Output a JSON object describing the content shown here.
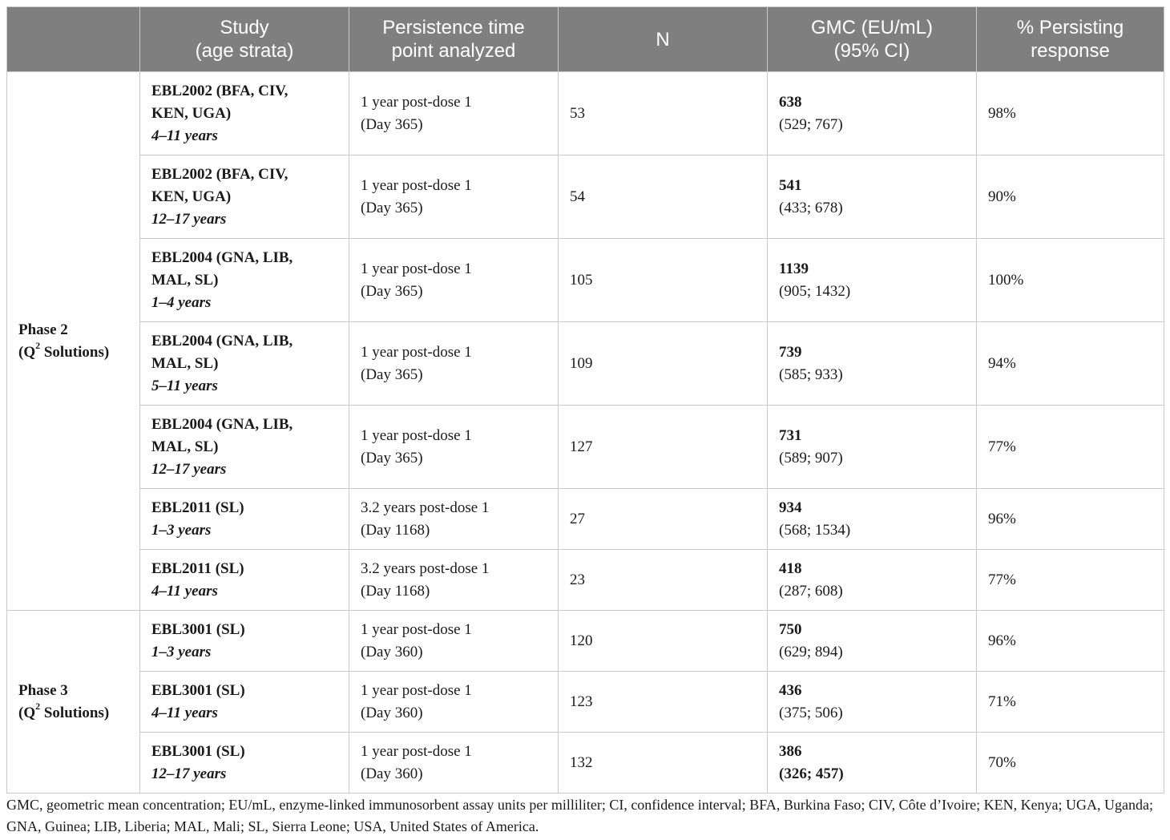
{
  "header": {
    "col0": "",
    "study": [
      "Study",
      "(age strata)"
    ],
    "timepoint": [
      "Persistence time",
      "point analyzed"
    ],
    "n": "N",
    "gmc": [
      "GMC (EU/mL)",
      "(95% CI)"
    ],
    "persisting": [
      "% Persisting",
      "response"
    ]
  },
  "phases": [
    {
      "line1": "Phase 2",
      "line2_prefix": "(Q",
      "sup": "2",
      "line2_suffix": " Solutions)"
    },
    {
      "line1": "Phase 3",
      "line2_prefix": "(Q",
      "sup": "2",
      "line2_suffix": " Solutions)"
    }
  ],
  "rows": [
    {
      "study": [
        "EBL2002 (BFA, CIV,",
        "KEN, UGA)"
      ],
      "age": "4–11 years",
      "time": [
        "1 year post-dose 1",
        "(Day 365)"
      ],
      "n": "53",
      "gmc": "638",
      "ci": "(529; 767)",
      "pct": "98%"
    },
    {
      "study": [
        "EBL2002 (BFA, CIV,",
        "KEN, UGA)"
      ],
      "age": "12–17 years",
      "time": [
        "1 year post-dose 1",
        "(Day 365)"
      ],
      "n": "54",
      "gmc": "541",
      "ci": "(433; 678)",
      "pct": "90%"
    },
    {
      "study": [
        "EBL2004 (GNA, LIB,",
        "MAL, SL)"
      ],
      "age": "1–4 years",
      "time": [
        "1 year post-dose 1",
        "(Day 365)"
      ],
      "n": "105",
      "gmc": "1139",
      "ci": "(905; 1432)",
      "pct": "100%"
    },
    {
      "study": [
        "EBL2004 (GNA, LIB,",
        "MAL, SL)"
      ],
      "age": "5–11 years",
      "time": [
        "1 year post-dose 1",
        "(Day 365)"
      ],
      "n": "109",
      "gmc": "739",
      "ci": "(585; 933)",
      "pct": "94%"
    },
    {
      "study": [
        "EBL2004 (GNA, LIB,",
        "MAL, SL)"
      ],
      "age": "12–17 years",
      "time": [
        "1 year post-dose 1",
        "(Day 365)"
      ],
      "n": "127",
      "gmc": "731",
      "ci": "(589; 907)",
      "pct": "77%"
    },
    {
      "study": [
        "EBL2011 (SL)"
      ],
      "age": "1–3 years",
      "time": [
        "3.2 years post-dose 1",
        "(Day 1168)"
      ],
      "n": "27",
      "gmc": "934",
      "ci": "(568; 1534)",
      "pct": "96%"
    },
    {
      "study": [
        "EBL2011 (SL)"
      ],
      "age": "4–11 years",
      "time": [
        "3.2 years post-dose 1",
        "(Day 1168)"
      ],
      "n": "23",
      "gmc": "418",
      "ci": "(287; 608)",
      "pct": "77%"
    },
    {
      "study": [
        "EBL3001 (SL)"
      ],
      "age": "1–3 years",
      "time": [
        "1 year post-dose 1",
        "(Day 360)"
      ],
      "n": "120",
      "gmc": "750",
      "ci": "(629; 894)",
      "pct": "96%"
    },
    {
      "study": [
        "EBL3001 (SL)"
      ],
      "age": "4–11 years",
      "time": [
        "1 year post-dose 1",
        "(Day 360)"
      ],
      "n": "123",
      "gmc": "436",
      "ci": "(375; 506)",
      "pct": "71%"
    },
    {
      "study": [
        "EBL3001 (SL)"
      ],
      "age": "12–17 years",
      "time": [
        "1 year post-dose 1",
        "(Day 360)"
      ],
      "n": "132",
      "gmc": "386",
      "ci": "(326; 457)",
      "pct": "70%"
    }
  ],
  "footnote": "GMC, geometric mean concentration; EU/mL, enzyme-linked immunosorbent assay units per milliliter; CI, confidence interval; BFA, Burkina Faso; CIV, Côte d’Ivoire; KEN, Kenya; UGA, Uganda; GNA, Guinea; LIB, Liberia; MAL, Mali; SL, Sierra Leone; USA, United States of America."
}
